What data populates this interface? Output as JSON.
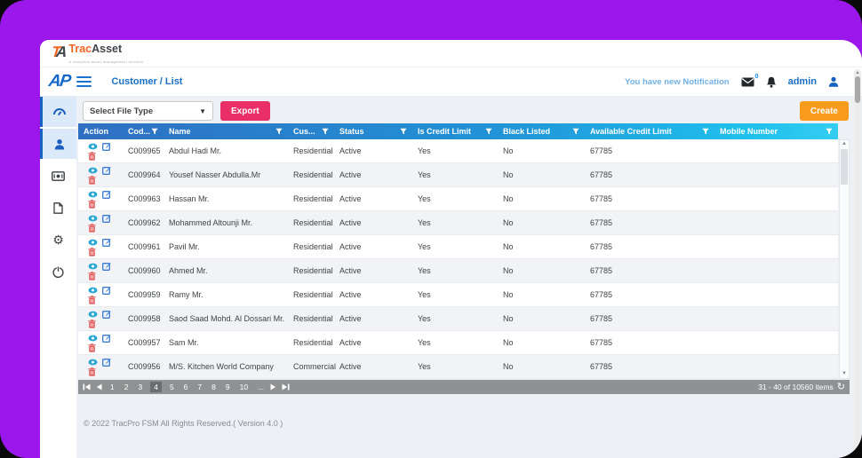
{
  "brand": {
    "mark": "TA",
    "name_part1": "Trac",
    "name_part2": "Asset",
    "tagline": "A complete asset management solution",
    "app_mark": "AP"
  },
  "nav": {
    "breadcrumb": "Customer / List",
    "notification_text": "You have new Notification",
    "notification_badge": "0",
    "username": "admin"
  },
  "toolbar": {
    "file_type_select": "Select File Type",
    "export_label": "Export",
    "create_label": "Create"
  },
  "sidebar": {
    "icons": [
      "dashboard-icon",
      "customers-icon",
      "payments-icon",
      "documents-icon",
      "settings-icon",
      "power-icon"
    ],
    "active_items": [
      "dashboard",
      "customers"
    ]
  },
  "table": {
    "columns": [
      {
        "label": "Action",
        "filter": false
      },
      {
        "label": "Cod...",
        "filter": true
      },
      {
        "label": "Name",
        "filter": true
      },
      {
        "label": "Cus...",
        "filter": true
      },
      {
        "label": "Status",
        "filter": true
      },
      {
        "label": "Is Credit Limit",
        "filter": true
      },
      {
        "label": "Black Listed",
        "filter": true
      },
      {
        "label": "Available Credit Limit",
        "filter": true
      },
      {
        "label": "Mobile Number",
        "filter": true
      }
    ],
    "rows": [
      {
        "code": "C009965",
        "name": "Abdul Hadi Mr.",
        "customer_type": "Residential",
        "status": "Active",
        "is_credit_limit": "Yes",
        "black_listed": "No",
        "available_credit_limit": "67785",
        "mobile_number": ""
      },
      {
        "code": "C009964",
        "name": "Yousef Nasser Abdulla.Mr",
        "customer_type": "Residential",
        "status": "Active",
        "is_credit_limit": "Yes",
        "black_listed": "No",
        "available_credit_limit": "67785",
        "mobile_number": ""
      },
      {
        "code": "C009963",
        "name": "Hassan Mr.",
        "customer_type": "Residential",
        "status": "Active",
        "is_credit_limit": "Yes",
        "black_listed": "No",
        "available_credit_limit": "67785",
        "mobile_number": ""
      },
      {
        "code": "C009962",
        "name": "Mohammed Altounji Mr.",
        "customer_type": "Residential",
        "status": "Active",
        "is_credit_limit": "Yes",
        "black_listed": "No",
        "available_credit_limit": "67785",
        "mobile_number": ""
      },
      {
        "code": "C009961",
        "name": "Pavil Mr.",
        "customer_type": "Residential",
        "status": "Active",
        "is_credit_limit": "Yes",
        "black_listed": "No",
        "available_credit_limit": "67785",
        "mobile_number": ""
      },
      {
        "code": "C009960",
        "name": "Ahmed Mr.",
        "customer_type": "Residential",
        "status": "Active",
        "is_credit_limit": "Yes",
        "black_listed": "No",
        "available_credit_limit": "67785",
        "mobile_number": ""
      },
      {
        "code": "C009959",
        "name": "Ramy Mr.",
        "customer_type": "Residential",
        "status": "Active",
        "is_credit_limit": "Yes",
        "black_listed": "No",
        "available_credit_limit": "67785",
        "mobile_number": ""
      },
      {
        "code": "C009958",
        "name": "Saod Saad Mohd. Al Dossari Mr.",
        "customer_type": "Residential",
        "status": "Active",
        "is_credit_limit": "Yes",
        "black_listed": "No",
        "available_credit_limit": "67785",
        "mobile_number": ""
      },
      {
        "code": "C009957",
        "name": "Sam Mr.",
        "customer_type": "Residential",
        "status": "Active",
        "is_credit_limit": "Yes",
        "black_listed": "No",
        "available_credit_limit": "67785",
        "mobile_number": ""
      },
      {
        "code": "C009956",
        "name": "M/S. Kitchen World Company",
        "customer_type": "Commercial",
        "status": "Active",
        "is_credit_limit": "Yes",
        "black_listed": "No",
        "available_credit_limit": "67785",
        "mobile_number": ""
      }
    ]
  },
  "pagination": {
    "pages": [
      "1",
      "2",
      "3",
      "4",
      "5",
      "6",
      "7",
      "8",
      "9",
      "10",
      "..."
    ],
    "current": "4",
    "summary": "31 - 40 of 10560 items"
  },
  "footer": {
    "copyright": "© 2022 TracPro FSM All Rights Reserved.( Version 4.0 )"
  },
  "colors": {
    "window_purple": "#9b17eb",
    "header_gradient_start": "#2f6fc1",
    "header_gradient_end": "#33cdf2",
    "export_button": "#ea2e66",
    "create_button": "#f89b1c",
    "accent_blue": "#1565c0"
  }
}
